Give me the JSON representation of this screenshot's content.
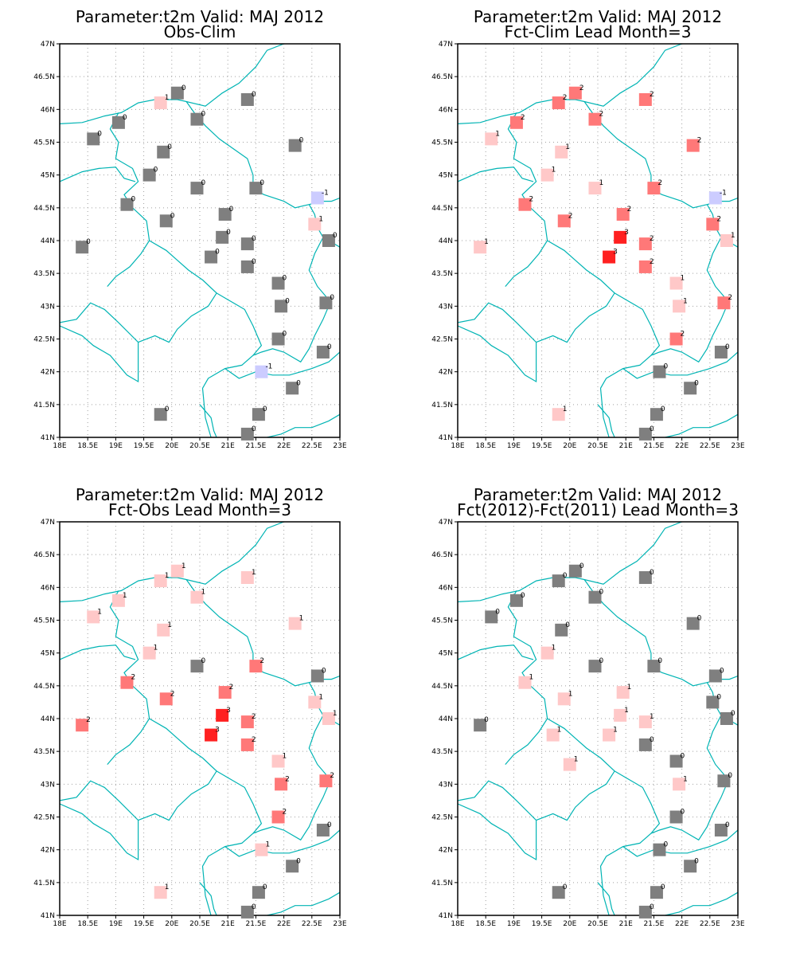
{
  "chart_data": [
    {
      "type": "scatter",
      "title": "Parameter:t2m Valid: MAJ 2012",
      "subtitle": "Obs-Clim",
      "xlim": [
        18,
        23
      ],
      "ylim": [
        41,
        47
      ],
      "points": [
        [
          19.8,
          46.1,
          1
        ],
        [
          20.1,
          46.25,
          0
        ],
        [
          21.35,
          46.15,
          0
        ],
        [
          19.05,
          45.8,
          0
        ],
        [
          20.45,
          45.85,
          0
        ],
        [
          18.6,
          45.55,
          0
        ],
        [
          19.85,
          45.35,
          0
        ],
        [
          22.2,
          45.45,
          0
        ],
        [
          19.6,
          45.0,
          0
        ],
        [
          20.45,
          44.8,
          0
        ],
        [
          21.5,
          44.8,
          0
        ],
        [
          22.6,
          44.65,
          -1
        ],
        [
          19.2,
          44.55,
          0
        ],
        [
          19.9,
          44.3,
          0
        ],
        [
          20.95,
          44.4,
          0
        ],
        [
          22.55,
          44.25,
          1
        ],
        [
          20.9,
          44.05,
          0
        ],
        [
          21.35,
          43.95,
          0
        ],
        [
          22.8,
          44.0,
          0
        ],
        [
          18.4,
          43.9,
          0
        ],
        [
          20.7,
          43.75,
          0
        ],
        [
          21.35,
          43.6,
          0
        ],
        [
          21.9,
          43.35,
          0
        ],
        [
          21.95,
          43.0,
          0
        ],
        [
          22.75,
          43.05,
          0
        ],
        [
          21.9,
          42.5,
          0
        ],
        [
          22.7,
          42.3,
          0
        ],
        [
          21.6,
          42.0,
          -1
        ],
        [
          22.15,
          41.75,
          0
        ],
        [
          19.8,
          41.35,
          0
        ],
        [
          21.55,
          41.35,
          0
        ],
        [
          21.35,
          41.05,
          0
        ]
      ]
    },
    {
      "type": "scatter",
      "title": "Parameter:t2m Valid: MAJ 2012",
      "subtitle": "Fct-Clim Lead Month=3",
      "xlim": [
        18,
        23
      ],
      "ylim": [
        41,
        47
      ],
      "points": [
        [
          19.8,
          46.1,
          2
        ],
        [
          20.1,
          46.25,
          2
        ],
        [
          21.35,
          46.15,
          2
        ],
        [
          19.05,
          45.8,
          2
        ],
        [
          20.45,
          45.85,
          2
        ],
        [
          18.6,
          45.55,
          1
        ],
        [
          19.85,
          45.35,
          1
        ],
        [
          22.2,
          45.45,
          2
        ],
        [
          19.6,
          45.0,
          1
        ],
        [
          20.45,
          44.8,
          1
        ],
        [
          21.5,
          44.8,
          2
        ],
        [
          22.6,
          44.65,
          -1
        ],
        [
          19.2,
          44.55,
          2
        ],
        [
          19.9,
          44.3,
          2
        ],
        [
          20.95,
          44.4,
          2
        ],
        [
          22.55,
          44.25,
          2
        ],
        [
          20.9,
          44.05,
          3
        ],
        [
          21.35,
          43.95,
          2
        ],
        [
          22.8,
          44.0,
          1
        ],
        [
          18.4,
          43.9,
          1
        ],
        [
          20.7,
          43.75,
          3
        ],
        [
          21.35,
          43.6,
          2
        ],
        [
          21.9,
          43.35,
          1
        ],
        [
          21.95,
          43.0,
          1
        ],
        [
          22.75,
          43.05,
          2
        ],
        [
          21.9,
          42.5,
          2
        ],
        [
          22.7,
          42.3,
          0
        ],
        [
          21.6,
          42.0,
          0
        ],
        [
          22.15,
          41.75,
          0
        ],
        [
          19.8,
          41.35,
          1
        ],
        [
          21.55,
          41.35,
          0
        ],
        [
          21.35,
          41.05,
          0
        ]
      ]
    },
    {
      "type": "scatter",
      "title": "Parameter:t2m Valid: MAJ 2012",
      "subtitle": "Fct-Obs Lead Month=3",
      "xlim": [
        18,
        23
      ],
      "ylim": [
        41,
        47
      ],
      "points": [
        [
          19.8,
          46.1,
          1
        ],
        [
          20.1,
          46.25,
          1
        ],
        [
          21.35,
          46.15,
          1
        ],
        [
          19.05,
          45.8,
          1
        ],
        [
          20.45,
          45.85,
          1
        ],
        [
          18.6,
          45.55,
          1
        ],
        [
          19.85,
          45.35,
          1
        ],
        [
          22.2,
          45.45,
          1
        ],
        [
          19.6,
          45.0,
          1
        ],
        [
          20.45,
          44.8,
          0
        ],
        [
          21.5,
          44.8,
          2
        ],
        [
          22.6,
          44.65,
          0
        ],
        [
          19.2,
          44.55,
          2
        ],
        [
          19.9,
          44.3,
          2
        ],
        [
          20.95,
          44.4,
          2
        ],
        [
          22.55,
          44.25,
          1
        ],
        [
          20.9,
          44.05,
          3
        ],
        [
          21.35,
          43.95,
          2
        ],
        [
          22.8,
          44.0,
          1
        ],
        [
          18.4,
          43.9,
          2
        ],
        [
          20.7,
          43.75,
          3
        ],
        [
          21.35,
          43.6,
          2
        ],
        [
          21.9,
          43.35,
          1
        ],
        [
          21.95,
          43.0,
          2
        ],
        [
          22.75,
          43.05,
          2
        ],
        [
          21.9,
          42.5,
          2
        ],
        [
          22.7,
          42.3,
          0
        ],
        [
          21.6,
          42.0,
          1
        ],
        [
          22.15,
          41.75,
          0
        ],
        [
          19.8,
          41.35,
          1
        ],
        [
          21.55,
          41.35,
          0
        ],
        [
          21.35,
          41.05,
          0
        ]
      ]
    },
    {
      "type": "scatter",
      "title": "Parameter:t2m Valid: MAJ 2012",
      "subtitle": "Fct(2012)-Fct(2011) Lead Month=3",
      "xlim": [
        18,
        23
      ],
      "ylim": [
        41,
        47
      ],
      "points": [
        [
          19.8,
          46.1,
          0
        ],
        [
          20.1,
          46.25,
          0
        ],
        [
          21.35,
          46.15,
          0
        ],
        [
          19.05,
          45.8,
          0
        ],
        [
          20.45,
          45.85,
          0
        ],
        [
          18.6,
          45.55,
          0
        ],
        [
          19.85,
          45.35,
          0
        ],
        [
          22.2,
          45.45,
          0
        ],
        [
          19.6,
          45.0,
          1
        ],
        [
          20.45,
          44.8,
          0
        ],
        [
          21.5,
          44.8,
          0
        ],
        [
          22.6,
          44.65,
          0
        ],
        [
          19.2,
          44.55,
          1
        ],
        [
          19.9,
          44.3,
          1
        ],
        [
          20.95,
          44.4,
          1
        ],
        [
          22.55,
          44.25,
          0
        ],
        [
          20.9,
          44.05,
          1
        ],
        [
          21.35,
          43.95,
          1
        ],
        [
          22.8,
          44.0,
          0
        ],
        [
          18.4,
          43.9,
          0
        ],
        [
          19.7,
          43.75,
          1
        ],
        [
          20.7,
          43.75,
          1
        ],
        [
          21.35,
          43.6,
          0
        ],
        [
          21.9,
          43.35,
          0
        ],
        [
          20.0,
          43.3,
          1
        ],
        [
          21.95,
          43.0,
          1
        ],
        [
          22.75,
          43.05,
          0
        ],
        [
          21.9,
          42.5,
          0
        ],
        [
          22.7,
          42.3,
          0
        ],
        [
          21.6,
          42.0,
          0
        ],
        [
          22.15,
          41.75,
          0
        ],
        [
          19.8,
          41.35,
          0
        ],
        [
          21.55,
          41.35,
          0
        ],
        [
          21.35,
          41.05,
          0
        ]
      ]
    }
  ],
  "axes": {
    "x_ticks": [
      "18E",
      "18.5E",
      "19E",
      "19.5E",
      "20E",
      "20.5E",
      "21E",
      "21.5E",
      "22E",
      "22.5E",
      "23E"
    ],
    "y_ticks": [
      "41N",
      "41.5N",
      "42N",
      "42.5N",
      "43N",
      "43.5N",
      "44N",
      "44.5N",
      "45N",
      "45.5N",
      "46N",
      "46.5N",
      "47N"
    ]
  },
  "colors": {
    "-1": "#ccccff",
    "0": "#7f7f7f",
    "1": "#ffc8c8",
    "2": "#ff7878",
    "3": "#ff2020",
    "border": "#00b4b4",
    "grid": "#a0a0a0"
  }
}
